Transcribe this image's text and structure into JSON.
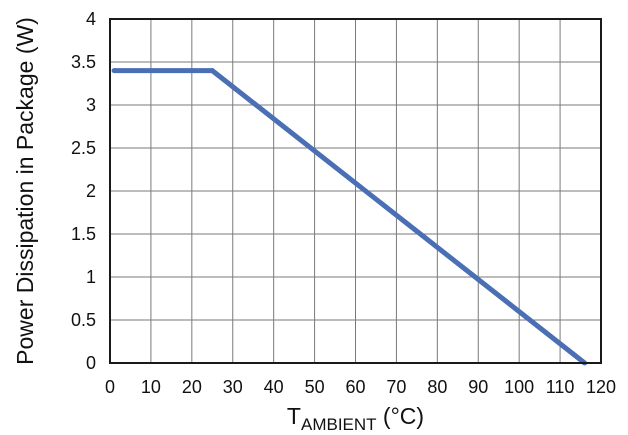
{
  "chart_data": {
    "type": "line",
    "title": "",
    "xlabel_main": "T",
    "xlabel_subscript": "AMBIENT",
    "xlabel_unit": " (°C)",
    "ylabel": "Power Dissipation in Package (W)",
    "xlim": [
      0,
      120
    ],
    "ylim": [
      0,
      4
    ],
    "x_ticks": [
      0,
      10,
      20,
      30,
      40,
      50,
      60,
      70,
      80,
      90,
      100,
      110,
      120
    ],
    "x_tick_labels": [
      "0",
      "10",
      "20",
      "30",
      "40",
      "50",
      "60",
      "70",
      "80",
      "90",
      "100",
      "110",
      "120"
    ],
    "y_ticks": [
      0,
      0.5,
      1,
      1.5,
      2,
      2.5,
      3,
      3.5,
      4
    ],
    "y_tick_labels": [
      "0",
      "0.5",
      "1",
      "1.5",
      "2",
      "2.5",
      "3",
      "3.5",
      "4"
    ],
    "grid": true,
    "legend": "none",
    "series": [
      {
        "color": "#4a6fb5",
        "points": [
          [
            1,
            3.4
          ],
          [
            25,
            3.4
          ],
          [
            116,
            0
          ]
        ]
      }
    ]
  }
}
